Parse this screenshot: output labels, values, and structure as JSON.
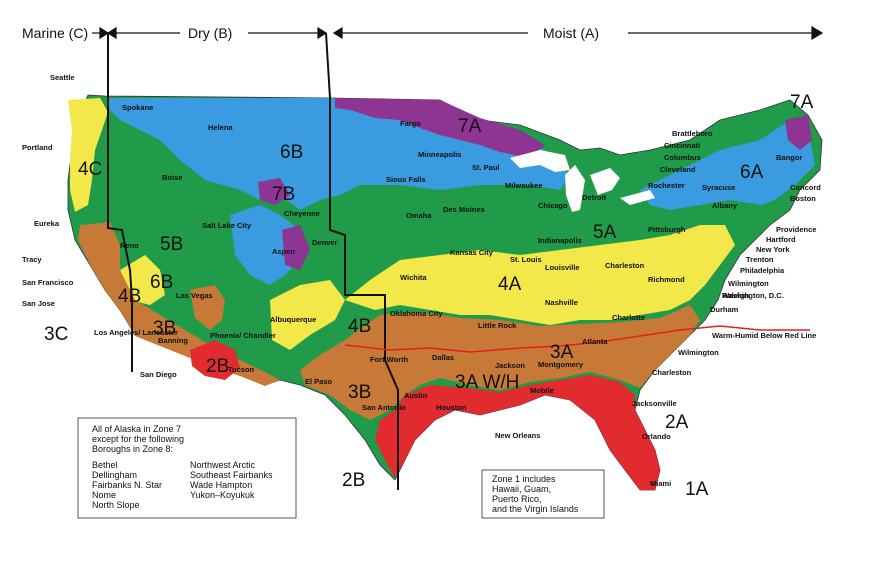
{
  "header": {
    "marine": "Marine (C)",
    "dry": "Dry (B)",
    "moist": "Moist (A)"
  },
  "colors": {
    "zone1_2": "#e12b2e",
    "zone3": "#c77937",
    "zone4": "#f2e84a",
    "zone5": "#1f9b49",
    "zone6": "#3a9be0",
    "zone7": "#8e3493",
    "ocean": "#ffffff",
    "boundary": "#e02020",
    "divider": "#111111"
  },
  "zone_labels": [
    "7A",
    "7A",
    "6B",
    "6A",
    "7B",
    "4C",
    "5B",
    "5A",
    "6B",
    "4B",
    "4A",
    "4B",
    "3C",
    "3B",
    "2B",
    "3A",
    "3A W/H",
    "3B",
    "2A",
    "2B",
    "1A"
  ],
  "cities": [
    "Seattle",
    "Portland",
    "Eureka",
    "Tracy",
    "San Francisco",
    "San Jose",
    "Los Angeles/ Lancaster",
    "San Diego",
    "Spokane",
    "Helena",
    "Boise",
    "Reno",
    "Salt Lake City",
    "Cheyenne",
    "Aspen",
    "Denver",
    "Las Vegas",
    "Phoenix/ Chandler",
    "Tucson",
    "Albuquerque",
    "El Paso",
    "Banning",
    "Fargo",
    "Minneapolis",
    "St. Paul",
    "Sioux Falls",
    "Omaha",
    "Des Moines",
    "Wichita",
    "Kansas City",
    "Oklahoma City",
    "Fort Worth",
    "Dallas",
    "San Antonio",
    "Austin",
    "Houston",
    "New Orleans",
    "Milwaukee",
    "Chicago",
    "Detroit",
    "Indianapolis",
    "St. Louis",
    "Louisville",
    "Nashville",
    "Little Rock",
    "Jackson",
    "Mobile",
    "Montgomery",
    "Atlanta",
    "Charlotte",
    "Raleigh",
    "Richmond",
    "Pittsburgh",
    "Charleston",
    "Jacksonville",
    "Orlando",
    "Miami",
    "Brattleboro",
    "Cincinnati",
    "Columbus",
    "Cleveland",
    "Rochester",
    "Syracuse",
    "Albany",
    "Bangor",
    "Concord",
    "Boston",
    "Providence",
    "Hartford",
    "New York",
    "Trenton",
    "Philadelphia",
    "Wilmington",
    "Washington, D.C.",
    "Durham",
    "Wilmington",
    "Charleston"
  ],
  "legend": {
    "line": "Warm-Humid Below Red Line"
  },
  "alaska_note": {
    "heading": [
      "All of Alaska in Zone 7",
      "except for the following",
      "Boroughs in Zone 8:"
    ],
    "left": [
      "Bethel",
      "Dellingham",
      "Fairbanks N. Star",
      "Nome",
      "North Slope"
    ],
    "right": [
      "Northwest Arctic",
      "Southeast Fairbanks",
      "Wade Hampton",
      "Yukon–Koyukuk"
    ]
  },
  "zone1_note": [
    "Zone 1 includes",
    "Hawaii, Guam,",
    "Puerto Rico,",
    "and the Virgin Islands"
  ]
}
